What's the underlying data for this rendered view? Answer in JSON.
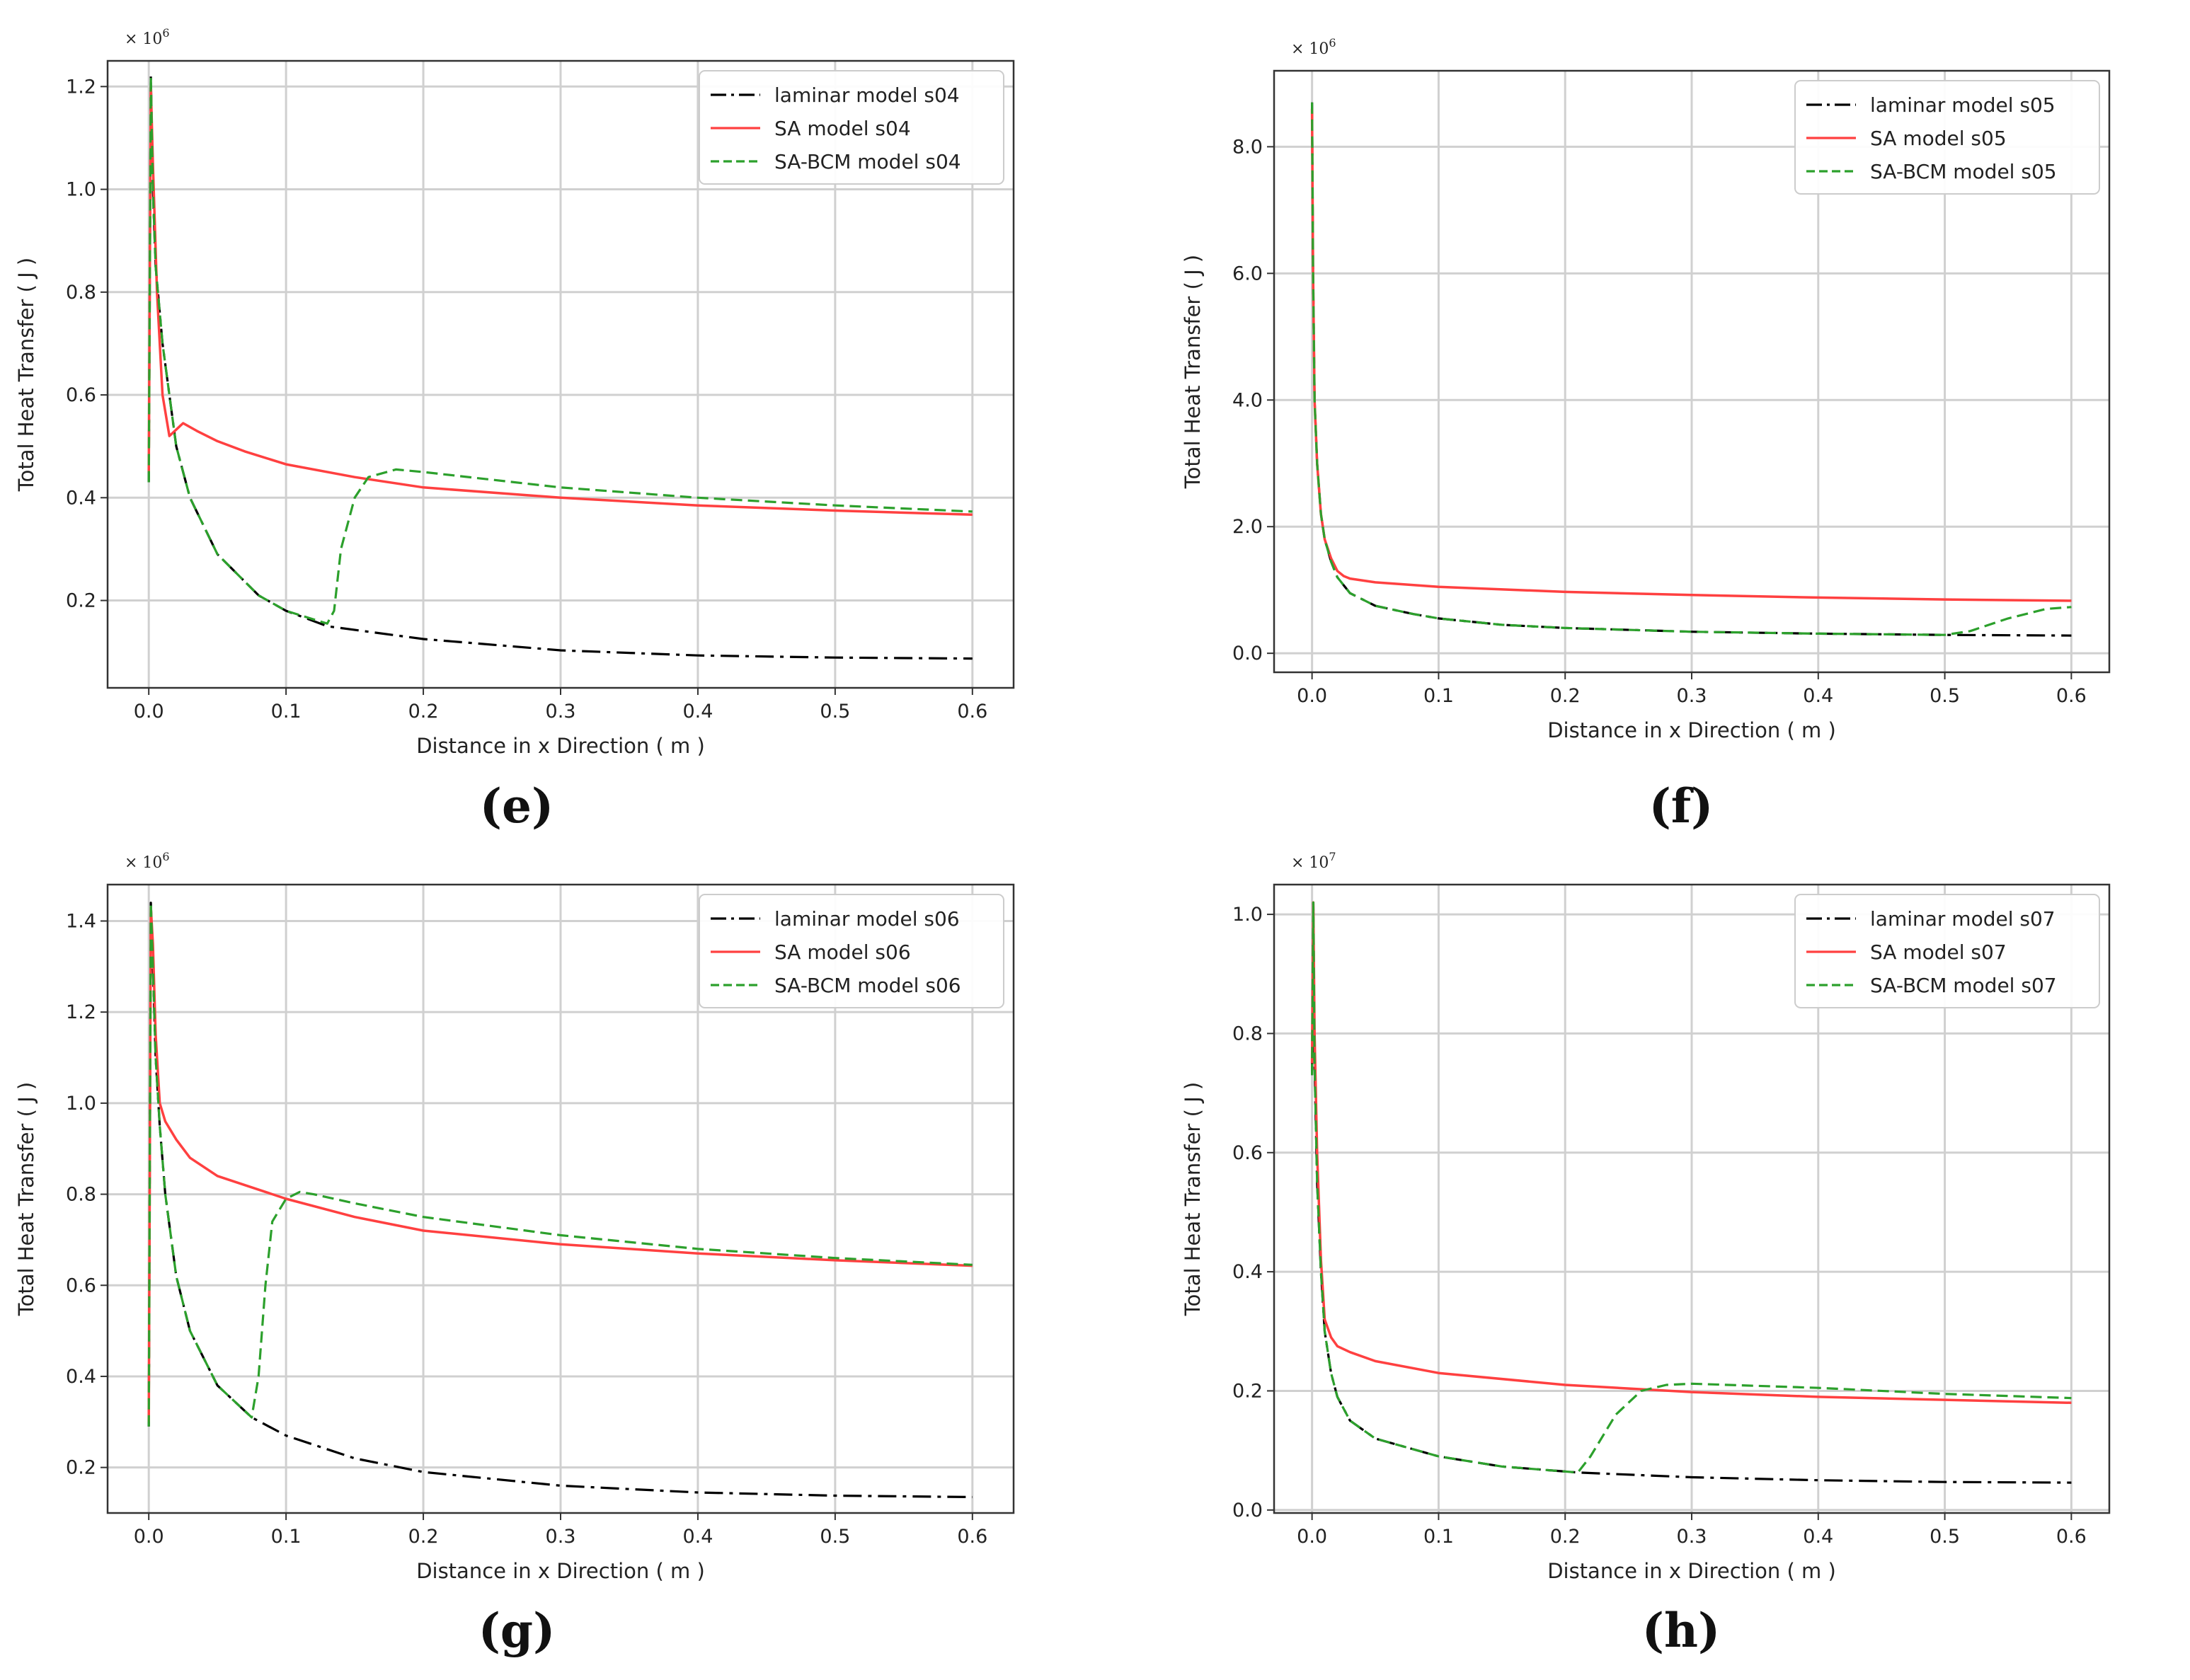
{
  "colors": {
    "laminar": "#000000",
    "sa": "#ff4040",
    "sabcm": "#2ca02c",
    "grid": "#d0d0d0",
    "axis": "#333333"
  },
  "chart_data": [
    {
      "type": "line",
      "panel": "e",
      "caption": "(e)",
      "title": "",
      "xlabel": "Distance in x Direction ( m )",
      "ylabel": "Total Heat Transfer ( J )",
      "multiplier_base": "× 10",
      "multiplier_exp": "6",
      "xlim": [
        -0.03,
        0.63
      ],
      "ylim": [
        0.03,
        1.25
      ],
      "grid": true,
      "legend_position": "top-right",
      "xticks": [
        "0.0",
        "0.1",
        "0.2",
        "0.3",
        "0.4",
        "0.5",
        "0.6"
      ],
      "xtick_values": [
        0,
        0.1,
        0.2,
        0.3,
        0.4,
        0.5,
        0.6
      ],
      "yticks": [
        "0.2",
        "0.4",
        "0.6",
        "0.8",
        "1.0",
        "1.2"
      ],
      "ytick_values": [
        0.2,
        0.4,
        0.6,
        0.8,
        1.0,
        1.2
      ],
      "series": [
        {
          "name": "laminar model s04",
          "style": "dashdot",
          "colorKey": "laminar",
          "x": [
            0,
            0.0015,
            0.003,
            0.005,
            0.01,
            0.02,
            0.03,
            0.05,
            0.08,
            0.1,
            0.13,
            0.2,
            0.3,
            0.4,
            0.5,
            0.6
          ],
          "y": [
            0.43,
            1.22,
            1.0,
            0.85,
            0.7,
            0.5,
            0.4,
            0.29,
            0.21,
            0.18,
            0.15,
            0.125,
            0.103,
            0.093,
            0.089,
            0.087
          ]
        },
        {
          "name": "SA model s04",
          "style": "solid",
          "colorKey": "sa",
          "x": [
            0,
            0.0015,
            0.003,
            0.006,
            0.01,
            0.015,
            0.025,
            0.035,
            0.05,
            0.07,
            0.1,
            0.15,
            0.2,
            0.3,
            0.4,
            0.5,
            0.6
          ],
          "y": [
            0.45,
            1.2,
            1.05,
            0.8,
            0.6,
            0.52,
            0.545,
            0.53,
            0.51,
            0.49,
            0.465,
            0.44,
            0.42,
            0.4,
            0.385,
            0.375,
            0.367
          ]
        },
        {
          "name": "SA-BCM model s04",
          "style": "dashed",
          "colorKey": "sabcm",
          "x": [
            0,
            0.0015,
            0.003,
            0.005,
            0.01,
            0.02,
            0.03,
            0.05,
            0.08,
            0.1,
            0.13,
            0.135,
            0.14,
            0.15,
            0.16,
            0.18,
            0.2,
            0.3,
            0.4,
            0.5,
            0.6
          ],
          "y": [
            0.43,
            1.22,
            1.0,
            0.85,
            0.7,
            0.5,
            0.4,
            0.29,
            0.21,
            0.18,
            0.155,
            0.18,
            0.3,
            0.4,
            0.44,
            0.455,
            0.45,
            0.42,
            0.4,
            0.385,
            0.373
          ]
        }
      ]
    },
    {
      "type": "line",
      "panel": "f",
      "caption": "(f)",
      "title": "",
      "xlabel": "Distance in x Direction ( m )",
      "ylabel": "Total Heat Transfer ( J )",
      "multiplier_base": "× 10",
      "multiplier_exp": "6",
      "xlim": [
        -0.03,
        0.63
      ],
      "ylim": [
        -0.3,
        9.2
      ],
      "grid": true,
      "legend_position": "top-right",
      "xticks": [
        "0.0",
        "0.1",
        "0.2",
        "0.3",
        "0.4",
        "0.5",
        "0.6"
      ],
      "xtick_values": [
        0,
        0.1,
        0.2,
        0.3,
        0.4,
        0.5,
        0.6
      ],
      "yticks": [
        "0.0",
        "2.0",
        "4.0",
        "6.0",
        "8.0"
      ],
      "ytick_values": [
        0,
        2,
        4,
        6,
        8
      ],
      "series": [
        {
          "name": "laminar model s05",
          "style": "dashdot",
          "colorKey": "laminar",
          "x": [
            0,
            0.0008,
            0.002,
            0.004,
            0.007,
            0.01,
            0.015,
            0.02,
            0.03,
            0.05,
            0.08,
            0.1,
            0.15,
            0.2,
            0.3,
            0.4,
            0.5,
            0.6
          ],
          "y": [
            8.7,
            6.0,
            4.0,
            3.0,
            2.2,
            1.8,
            1.45,
            1.2,
            0.95,
            0.75,
            0.62,
            0.55,
            0.45,
            0.4,
            0.34,
            0.31,
            0.29,
            0.28
          ]
        },
        {
          "name": "SA model s05",
          "style": "solid",
          "colorKey": "sa",
          "x": [
            0,
            0.0008,
            0.002,
            0.004,
            0.007,
            0.01,
            0.015,
            0.02,
            0.025,
            0.03,
            0.05,
            0.1,
            0.2,
            0.3,
            0.4,
            0.5,
            0.6
          ],
          "y": [
            8.6,
            6.0,
            4.0,
            3.0,
            2.2,
            1.8,
            1.5,
            1.3,
            1.22,
            1.18,
            1.12,
            1.05,
            0.97,
            0.92,
            0.88,
            0.85,
            0.83
          ]
        },
        {
          "name": "SA-BCM model s05",
          "style": "dashed",
          "colorKey": "sabcm",
          "x": [
            0,
            0.0008,
            0.002,
            0.004,
            0.007,
            0.01,
            0.015,
            0.02,
            0.03,
            0.05,
            0.08,
            0.1,
            0.15,
            0.2,
            0.3,
            0.4,
            0.5,
            0.52,
            0.55,
            0.58,
            0.6
          ],
          "y": [
            8.7,
            6.0,
            4.0,
            3.0,
            2.2,
            1.8,
            1.45,
            1.2,
            0.95,
            0.75,
            0.62,
            0.55,
            0.45,
            0.4,
            0.34,
            0.31,
            0.29,
            0.35,
            0.55,
            0.7,
            0.73
          ]
        }
      ]
    },
    {
      "type": "line",
      "panel": "g",
      "caption": "(g)",
      "title": "",
      "xlabel": "Distance in x Direction ( m )",
      "ylabel": "Total Heat Transfer ( J )",
      "multiplier_base": "× 10",
      "multiplier_exp": "6",
      "xlim": [
        -0.03,
        0.63
      ],
      "ylim": [
        0.1,
        1.48
      ],
      "grid": true,
      "legend_position": "top-right",
      "xticks": [
        "0.0",
        "0.1",
        "0.2",
        "0.3",
        "0.4",
        "0.5",
        "0.6"
      ],
      "xtick_values": [
        0,
        0.1,
        0.2,
        0.3,
        0.4,
        0.5,
        0.6
      ],
      "yticks": [
        "0.2",
        "0.4",
        "0.6",
        "0.8",
        "1.0",
        "1.2",
        "1.4"
      ],
      "ytick_values": [
        0.2,
        0.4,
        0.6,
        0.8,
        1.0,
        1.2,
        1.4
      ],
      "series": [
        {
          "name": "laminar model s06",
          "style": "dashdot",
          "colorKey": "laminar",
          "x": [
            0,
            0.0015,
            0.003,
            0.005,
            0.008,
            0.012,
            0.02,
            0.03,
            0.05,
            0.075,
            0.1,
            0.15,
            0.2,
            0.3,
            0.4,
            0.5,
            0.6
          ],
          "y": [
            0.29,
            1.44,
            1.3,
            1.1,
            0.95,
            0.8,
            0.62,
            0.5,
            0.38,
            0.31,
            0.27,
            0.22,
            0.19,
            0.16,
            0.145,
            0.138,
            0.135
          ]
        },
        {
          "name": "SA model s06",
          "style": "solid",
          "colorKey": "sa",
          "x": [
            0,
            0.0015,
            0.003,
            0.005,
            0.008,
            0.012,
            0.02,
            0.03,
            0.05,
            0.1,
            0.15,
            0.2,
            0.3,
            0.4,
            0.5,
            0.6
          ],
          "y": [
            0.3,
            1.43,
            1.35,
            1.15,
            1.0,
            0.96,
            0.92,
            0.88,
            0.84,
            0.79,
            0.75,
            0.72,
            0.69,
            0.67,
            0.655,
            0.643
          ]
        },
        {
          "name": "SA-BCM model s06",
          "style": "dashed",
          "colorKey": "sabcm",
          "x": [
            0,
            0.0015,
            0.003,
            0.005,
            0.008,
            0.012,
            0.02,
            0.03,
            0.05,
            0.075,
            0.08,
            0.085,
            0.09,
            0.1,
            0.11,
            0.12,
            0.15,
            0.2,
            0.3,
            0.4,
            0.5,
            0.6
          ],
          "y": [
            0.29,
            1.44,
            1.3,
            1.1,
            0.95,
            0.8,
            0.62,
            0.5,
            0.38,
            0.31,
            0.4,
            0.6,
            0.74,
            0.79,
            0.805,
            0.8,
            0.78,
            0.75,
            0.71,
            0.68,
            0.66,
            0.645
          ]
        }
      ]
    },
    {
      "type": "line",
      "panel": "h",
      "caption": "(h)",
      "title": "",
      "xlabel": "Distance in x Direction ( m )",
      "ylabel": "Total Heat Transfer ( J )",
      "multiplier_base": "× 10",
      "multiplier_exp": "7",
      "xlim": [
        -0.03,
        0.63
      ],
      "ylim": [
        -0.005,
        1.05
      ],
      "grid": true,
      "legend_position": "top-right",
      "xticks": [
        "0.0",
        "0.1",
        "0.2",
        "0.3",
        "0.4",
        "0.5",
        "0.6"
      ],
      "xtick_values": [
        0,
        0.1,
        0.2,
        0.3,
        0.4,
        0.5,
        0.6
      ],
      "yticks": [
        "0.0",
        "0.2",
        "0.4",
        "0.6",
        "0.8",
        "1.0"
      ],
      "ytick_values": [
        0,
        0.2,
        0.4,
        0.6,
        0.8,
        1.0
      ],
      "series": [
        {
          "name": "laminar model s07",
          "style": "dashdot",
          "colorKey": "laminar",
          "x": [
            0,
            0.001,
            0.002,
            0.004,
            0.007,
            0.01,
            0.015,
            0.02,
            0.03,
            0.05,
            0.1,
            0.15,
            0.21,
            0.3,
            0.4,
            0.5,
            0.6
          ],
          "y": [
            0.73,
            1.02,
            0.75,
            0.55,
            0.4,
            0.3,
            0.23,
            0.19,
            0.15,
            0.12,
            0.09,
            0.073,
            0.063,
            0.055,
            0.05,
            0.047,
            0.046
          ]
        },
        {
          "name": "SA model s07",
          "style": "solid",
          "colorKey": "sa",
          "x": [
            0,
            0.001,
            0.002,
            0.004,
            0.007,
            0.01,
            0.015,
            0.02,
            0.03,
            0.05,
            0.1,
            0.2,
            0.3,
            0.4,
            0.5,
            0.6
          ],
          "y": [
            0.75,
            1.02,
            0.8,
            0.6,
            0.42,
            0.32,
            0.29,
            0.275,
            0.265,
            0.25,
            0.23,
            0.21,
            0.198,
            0.19,
            0.185,
            0.18
          ]
        },
        {
          "name": "SA-BCM model s07",
          "style": "dashed",
          "colorKey": "sabcm",
          "x": [
            0,
            0.001,
            0.002,
            0.004,
            0.007,
            0.01,
            0.015,
            0.02,
            0.03,
            0.05,
            0.1,
            0.15,
            0.21,
            0.22,
            0.24,
            0.26,
            0.28,
            0.3,
            0.4,
            0.5,
            0.6
          ],
          "y": [
            0.73,
            1.02,
            0.75,
            0.55,
            0.4,
            0.3,
            0.23,
            0.19,
            0.15,
            0.12,
            0.09,
            0.073,
            0.063,
            0.09,
            0.16,
            0.2,
            0.21,
            0.212,
            0.205,
            0.195,
            0.188
          ]
        }
      ]
    }
  ]
}
